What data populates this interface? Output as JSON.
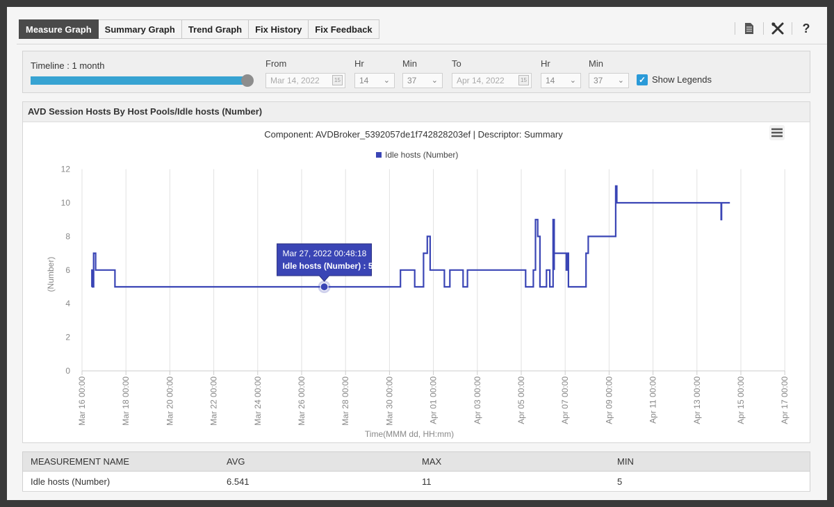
{
  "tabs": [
    {
      "label": "Measure Graph",
      "active": true
    },
    {
      "label": "Summary Graph",
      "active": false
    },
    {
      "label": "Trend Graph",
      "active": false
    },
    {
      "label": "Fix History",
      "active": false
    },
    {
      "label": "Fix Feedback",
      "active": false
    }
  ],
  "toolbar_icons": [
    "document-icon",
    "tools-icon",
    "help-icon"
  ],
  "help_glyph": "?",
  "controls": {
    "timeline_label": "Timeline : 1 month",
    "timeline_fill": 1.0,
    "from_label": "From",
    "from_date": "Mar 14, 2022",
    "from_hr_label": "Hr",
    "from_hr": "14",
    "from_min_label": "Min",
    "from_min": "37",
    "to_label": "To",
    "to_date": "Apr 14, 2022",
    "to_hr_label": "Hr",
    "to_hr": "14",
    "to_min_label": "Min",
    "to_min": "37",
    "show_legends_label": "Show Legends",
    "show_legends_checked": true,
    "calendar_day": "15"
  },
  "panel": {
    "title": "AVD Session Hosts By Host Pools/Idle hosts (Number)"
  },
  "chart_data": {
    "type": "line",
    "title": "Component: AVDBroker_5392057de1f742828203ef | Descriptor: Summary",
    "legend": "Idle hosts (Number)",
    "xlabel": "Time(MMM dd, HH:mm)",
    "ylabel": "(Number)",
    "ylim": [
      0,
      12
    ],
    "yticks": [
      0,
      2,
      4,
      6,
      8,
      10,
      12
    ],
    "xticks": [
      "Mar 16 00:00",
      "Mar 18 00:00",
      "Mar 20 00:00",
      "Mar 22 00:00",
      "Mar 24 00:00",
      "Mar 26 00:00",
      "Mar 28 00:00",
      "Mar 30 00:00",
      "Apr 01 00:00",
      "Apr 03 00:00",
      "Apr 05 00:00",
      "Apr 07 00:00",
      "Apr 09 00:00",
      "Apr 11 00:00",
      "Apr 13 00:00",
      "Apr 15 00:00",
      "Apr 17 00:00"
    ],
    "grid": true,
    "line_color": "#3a45b5",
    "series": [
      {
        "name": "Idle hosts (Number)",
        "x_days": [
          0.45,
          0.45,
          0.47,
          0.47,
          0.53,
          0.53,
          0.62,
          0.62,
          0.78,
          0.78,
          1.5,
          1.5,
          14.5,
          14.5,
          15.15,
          15.15,
          15.55,
          15.55,
          15.72,
          15.72,
          15.85,
          15.85,
          16.5,
          16.5,
          16.75,
          16.75,
          16.85,
          16.85,
          17.35,
          17.35,
          17.55,
          17.55,
          20.2,
          20.2,
          20.55,
          20.55,
          20.65,
          20.65,
          20.75,
          20.75,
          20.85,
          20.85,
          21.15,
          21.15,
          21.3,
          21.3,
          21.45,
          21.45,
          21.5,
          21.5,
          21.5,
          21.5,
          22.05,
          22.05,
          22.1,
          22.1,
          22.15,
          22.15,
          22.95,
          22.95,
          23.05,
          23.05,
          24.3,
          24.3,
          24.35,
          24.35,
          29.1,
          29.1,
          29.12,
          29.12,
          29.15,
          29.15,
          29.5
        ],
        "values": [
          5,
          6,
          6,
          5,
          5,
          7,
          7,
          6,
          6,
          6,
          6,
          5,
          5,
          6,
          6,
          5,
          5,
          7,
          7,
          8,
          8,
          6,
          6,
          5,
          5,
          6,
          6,
          6,
          6,
          5,
          5,
          6,
          6,
          5,
          5,
          6,
          6,
          9,
          9,
          8,
          8,
          5,
          5,
          6,
          6,
          5,
          5,
          9,
          9,
          6,
          6,
          7,
          7,
          6,
          6,
          7,
          7,
          5,
          5,
          7,
          7,
          8,
          8,
          11,
          11,
          10,
          10,
          9,
          9,
          10,
          10,
          10,
          10
        ]
      }
    ],
    "tooltip": {
      "title": "Mar 27, 2022 00:48:18",
      "label": "Idle hosts (Number) : 5",
      "x_days": 11.03,
      "value": 5
    }
  },
  "table": {
    "headers": [
      "MEASUREMENT NAME",
      "AVG",
      "MAX",
      "MIN"
    ],
    "rows": [
      [
        "Idle hosts (Number)",
        "6.541",
        "11",
        "5"
      ]
    ]
  }
}
